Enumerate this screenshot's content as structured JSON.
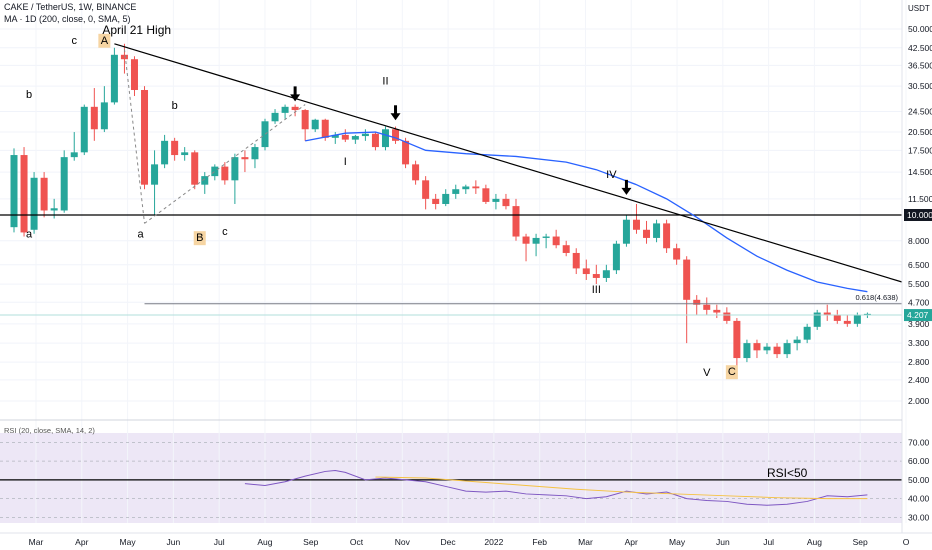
{
  "header": {
    "symbol_line": "CAKE / TetherUS, 1W, BINANCE",
    "ma_line": "MA · 1D (200, close, 0, SMA, 5)",
    "rsi_line": "RSI (20, close, SMA, 14, 2)",
    "currency": "USDT"
  },
  "chart_data": {
    "type": "candlestick",
    "price_axis": {
      "scale": "log",
      "ticks": [
        "50.000",
        "42.500",
        "36.500",
        "30.500",
        "24.500",
        "20.500",
        "17.500",
        "14.500",
        "11.500",
        "10.000",
        "8.000",
        "6.500",
        "5.500",
        "4.700",
        "4.207",
        "3.900",
        "3.300",
        "2.800",
        "2.400",
        "2.000"
      ],
      "current_price": "4.207",
      "highlight_level": "10.000"
    },
    "time_axis": {
      "labels": [
        "Mar",
        "Apr",
        "May",
        "Jun",
        "Jul",
        "Aug",
        "Sep",
        "Oct",
        "Nov",
        "Dec",
        "2022",
        "Feb",
        "Mar",
        "Apr",
        "May",
        "Jun",
        "Jul",
        "Aug",
        "Sep",
        "O"
      ]
    },
    "candles": [
      {
        "o": 9.0,
        "h": 17.8,
        "l": 8.6,
        "c": 16.8
      },
      {
        "o": 16.8,
        "h": 18.0,
        "l": 8.3,
        "c": 8.6
      },
      {
        "o": 8.8,
        "h": 14.5,
        "l": 8.5,
        "c": 13.8
      },
      {
        "o": 13.8,
        "h": 14.5,
        "l": 9.8,
        "c": 10.4
      },
      {
        "o": 10.4,
        "h": 11.5,
        "l": 9.7,
        "c": 10.6
      },
      {
        "o": 10.4,
        "h": 17.5,
        "l": 10.2,
        "c": 16.5
      },
      {
        "o": 16.5,
        "h": 20.5,
        "l": 16.0,
        "c": 17.2
      },
      {
        "o": 17.2,
        "h": 26.0,
        "l": 16.8,
        "c": 25.5
      },
      {
        "o": 25.5,
        "h": 30.0,
        "l": 19.0,
        "c": 21.0
      },
      {
        "o": 21.0,
        "h": 30.5,
        "l": 20.5,
        "c": 26.5
      },
      {
        "o": 26.5,
        "h": 42.5,
        "l": 26.0,
        "c": 40.0
      },
      {
        "o": 40.0,
        "h": 44.0,
        "l": 34.0,
        "c": 38.5
      },
      {
        "o": 38.5,
        "h": 39.5,
        "l": 28.0,
        "c": 29.5
      },
      {
        "o": 29.5,
        "h": 30.5,
        "l": 12.5,
        "c": 13.0
      },
      {
        "o": 13.0,
        "h": 17.5,
        "l": 10.0,
        "c": 15.5
      },
      {
        "o": 15.5,
        "h": 20.0,
        "l": 15.0,
        "c": 19.0
      },
      {
        "o": 19.0,
        "h": 19.5,
        "l": 16.0,
        "c": 16.8
      },
      {
        "o": 16.8,
        "h": 18.0,
        "l": 16.0,
        "c": 17.2
      },
      {
        "o": 17.2,
        "h": 17.5,
        "l": 12.5,
        "c": 13.0
      },
      {
        "o": 13.0,
        "h": 14.5,
        "l": 12.0,
        "c": 14.0
      },
      {
        "o": 14.0,
        "h": 15.5,
        "l": 13.5,
        "c": 15.2
      },
      {
        "o": 15.2,
        "h": 15.8,
        "l": 13.0,
        "c": 13.5
      },
      {
        "o": 13.5,
        "h": 17.0,
        "l": 11.0,
        "c": 16.5
      },
      {
        "o": 16.5,
        "h": 17.5,
        "l": 14.5,
        "c": 16.2
      },
      {
        "o": 16.2,
        "h": 18.5,
        "l": 15.0,
        "c": 18.0
      },
      {
        "o": 18.0,
        "h": 23.0,
        "l": 17.5,
        "c": 22.5
      },
      {
        "o": 22.5,
        "h": 25.0,
        "l": 22.0,
        "c": 24.2
      },
      {
        "o": 24.2,
        "h": 26.0,
        "l": 23.0,
        "c": 25.5
      },
      {
        "o": 25.5,
        "h": 26.0,
        "l": 23.5,
        "c": 24.8
      },
      {
        "o": 24.8,
        "h": 25.0,
        "l": 19.0,
        "c": 21.0
      },
      {
        "o": 21.0,
        "h": 23.0,
        "l": 20.5,
        "c": 22.8
      },
      {
        "o": 22.8,
        "h": 23.0,
        "l": 19.0,
        "c": 19.5
      },
      {
        "o": 19.5,
        "h": 20.5,
        "l": 18.5,
        "c": 20.0
      },
      {
        "o": 20.0,
        "h": 21.0,
        "l": 18.8,
        "c": 19.2
      },
      {
        "o": 19.2,
        "h": 20.0,
        "l": 18.5,
        "c": 19.8
      },
      {
        "o": 19.8,
        "h": 21.0,
        "l": 19.0,
        "c": 20.2
      },
      {
        "o": 20.2,
        "h": 20.5,
        "l": 17.5,
        "c": 18.0
      },
      {
        "o": 18.0,
        "h": 21.5,
        "l": 17.5,
        "c": 21.0
      },
      {
        "o": 21.0,
        "h": 21.5,
        "l": 18.5,
        "c": 19.0
      },
      {
        "o": 19.0,
        "h": 19.5,
        "l": 15.0,
        "c": 15.5
      },
      {
        "o": 15.5,
        "h": 16.0,
        "l": 13.0,
        "c": 13.5
      },
      {
        "o": 13.5,
        "h": 14.0,
        "l": 10.5,
        "c": 11.5
      },
      {
        "o": 11.5,
        "h": 12.0,
        "l": 10.5,
        "c": 11.0
      },
      {
        "o": 11.0,
        "h": 12.5,
        "l": 10.8,
        "c": 12.0
      },
      {
        "o": 12.0,
        "h": 13.0,
        "l": 11.5,
        "c": 12.5
      },
      {
        "o": 12.5,
        "h": 13.0,
        "l": 12.0,
        "c": 12.8
      },
      {
        "o": 12.8,
        "h": 13.5,
        "l": 12.0,
        "c": 12.6
      },
      {
        "o": 12.6,
        "h": 13.0,
        "l": 11.0,
        "c": 11.2
      },
      {
        "o": 11.2,
        "h": 12.0,
        "l": 10.5,
        "c": 11.5
      },
      {
        "o": 11.5,
        "h": 12.0,
        "l": 10.5,
        "c": 10.8
      },
      {
        "o": 10.8,
        "h": 11.5,
        "l": 8.0,
        "c": 8.3
      },
      {
        "o": 8.3,
        "h": 8.5,
        "l": 6.7,
        "c": 7.8
      },
      {
        "o": 7.8,
        "h": 8.5,
        "l": 7.0,
        "c": 8.2
      },
      {
        "o": 8.2,
        "h": 8.5,
        "l": 7.5,
        "c": 8.3
      },
      {
        "o": 8.3,
        "h": 8.8,
        "l": 7.5,
        "c": 7.7
      },
      {
        "o": 7.7,
        "h": 8.0,
        "l": 7.0,
        "c": 7.2
      },
      {
        "o": 7.2,
        "h": 7.5,
        "l": 6.0,
        "c": 6.3
      },
      {
        "o": 6.3,
        "h": 6.8,
        "l": 5.7,
        "c": 6.0
      },
      {
        "o": 6.0,
        "h": 6.5,
        "l": 5.5,
        "c": 5.8
      },
      {
        "o": 5.8,
        "h": 6.5,
        "l": 5.6,
        "c": 6.2
      },
      {
        "o": 6.2,
        "h": 8.0,
        "l": 6.0,
        "c": 7.8
      },
      {
        "o": 7.8,
        "h": 10.0,
        "l": 7.6,
        "c": 9.6
      },
      {
        "o": 9.6,
        "h": 11.0,
        "l": 8.5,
        "c": 8.8
      },
      {
        "o": 8.8,
        "h": 9.5,
        "l": 7.8,
        "c": 8.2
      },
      {
        "o": 8.2,
        "h": 9.6,
        "l": 7.9,
        "c": 9.3
      },
      {
        "o": 9.3,
        "h": 9.6,
        "l": 7.2,
        "c": 7.5
      },
      {
        "o": 7.5,
        "h": 7.8,
        "l": 6.5,
        "c": 6.8
      },
      {
        "o": 6.8,
        "h": 7.0,
        "l": 3.3,
        "c": 4.8
      },
      {
        "o": 4.8,
        "h": 5.0,
        "l": 4.2,
        "c": 4.6
      },
      {
        "o": 4.6,
        "h": 4.9,
        "l": 4.2,
        "c": 4.4
      },
      {
        "o": 4.4,
        "h": 4.6,
        "l": 4.1,
        "c": 4.3
      },
      {
        "o": 4.3,
        "h": 4.5,
        "l": 3.9,
        "c": 4.0
      },
      {
        "o": 4.0,
        "h": 4.1,
        "l": 2.6,
        "c": 2.9
      },
      {
        "o": 2.9,
        "h": 3.4,
        "l": 2.8,
        "c": 3.3
      },
      {
        "o": 3.3,
        "h": 3.4,
        "l": 2.9,
        "c": 3.1
      },
      {
        "o": 3.1,
        "h": 3.3,
        "l": 3.0,
        "c": 3.2
      },
      {
        "o": 3.2,
        "h": 3.3,
        "l": 2.9,
        "c": 3.0
      },
      {
        "o": 3.0,
        "h": 3.4,
        "l": 2.9,
        "c": 3.3
      },
      {
        "o": 3.3,
        "h": 3.5,
        "l": 3.1,
        "c": 3.4
      },
      {
        "o": 3.4,
        "h": 3.9,
        "l": 3.3,
        "c": 3.8
      },
      {
        "o": 3.8,
        "h": 4.4,
        "l": 3.7,
        "c": 4.3
      },
      {
        "o": 4.3,
        "h": 4.6,
        "l": 4.0,
        "c": 4.2
      },
      {
        "o": 4.2,
        "h": 4.4,
        "l": 3.9,
        "c": 4.0
      },
      {
        "o": 4.0,
        "h": 4.2,
        "l": 3.8,
        "c": 3.9
      },
      {
        "o": 3.9,
        "h": 4.3,
        "l": 3.8,
        "c": 4.2
      },
      {
        "o": 4.2,
        "h": 4.3,
        "l": 4.1,
        "c": 4.25
      }
    ],
    "moving_average_200": [
      {
        "i": 29,
        "v": 19.0
      },
      {
        "i": 33,
        "v": 20.3
      },
      {
        "i": 36,
        "v": 20.5
      },
      {
        "i": 38,
        "v": 19.5
      },
      {
        "i": 41,
        "v": 17.5
      },
      {
        "i": 45,
        "v": 17.0
      },
      {
        "i": 50,
        "v": 16.6
      },
      {
        "i": 55,
        "v": 15.8
      },
      {
        "i": 58,
        "v": 14.8
      },
      {
        "i": 62,
        "v": 13.0
      },
      {
        "i": 65,
        "v": 11.5
      },
      {
        "i": 68,
        "v": 9.8
      },
      {
        "i": 71,
        "v": 8.2
      },
      {
        "i": 74,
        "v": 7.0
      },
      {
        "i": 77,
        "v": 6.2
      },
      {
        "i": 80,
        "v": 5.6
      },
      {
        "i": 83,
        "v": 5.3
      },
      {
        "i": 85,
        "v": 5.15
      }
    ],
    "rsi": {
      "ticks": [
        "70.00",
        "60.00",
        "50.00",
        "40.00",
        "30.00"
      ],
      "threshold": 50,
      "rsi_values": [
        {
          "i": 23,
          "v": 48
        },
        {
          "i": 25,
          "v": 47
        },
        {
          "i": 27,
          "v": 49
        },
        {
          "i": 29,
          "v": 52
        },
        {
          "i": 31,
          "v": 54.5
        },
        {
          "i": 32,
          "v": 55
        },
        {
          "i": 33,
          "v": 54
        },
        {
          "i": 35,
          "v": 50
        },
        {
          "i": 37,
          "v": 51
        },
        {
          "i": 39,
          "v": 50
        },
        {
          "i": 41,
          "v": 49
        },
        {
          "i": 43,
          "v": 46.5
        },
        {
          "i": 45,
          "v": 44
        },
        {
          "i": 47,
          "v": 43.5
        },
        {
          "i": 49,
          "v": 44
        },
        {
          "i": 51,
          "v": 42.5
        },
        {
          "i": 53,
          "v": 42
        },
        {
          "i": 55,
          "v": 41.5
        },
        {
          "i": 57,
          "v": 40
        },
        {
          "i": 59,
          "v": 41
        },
        {
          "i": 61,
          "v": 44
        },
        {
          "i": 63,
          "v": 42.5
        },
        {
          "i": 65,
          "v": 43.5
        },
        {
          "i": 67,
          "v": 40
        },
        {
          "i": 69,
          "v": 39
        },
        {
          "i": 71,
          "v": 38.5
        },
        {
          "i": 73,
          "v": 37
        },
        {
          "i": 75,
          "v": 36.5
        },
        {
          "i": 77,
          "v": 37
        },
        {
          "i": 79,
          "v": 38.5
        },
        {
          "i": 81,
          "v": 41.5
        },
        {
          "i": 83,
          "v": 41
        },
        {
          "i": 85,
          "v": 42
        }
      ],
      "rsi_ma": [
        {
          "i": 36,
          "v": 51.5
        },
        {
          "i": 41,
          "v": 51
        },
        {
          "i": 46,
          "v": 49
        },
        {
          "i": 51,
          "v": 47
        },
        {
          "i": 56,
          "v": 45
        },
        {
          "i": 61,
          "v": 43.5
        },
        {
          "i": 66,
          "v": 42.5
        },
        {
          "i": 71,
          "v": 41.5
        },
        {
          "i": 76,
          "v": 40.5
        },
        {
          "i": 81,
          "v": 40
        },
        {
          "i": 85,
          "v": 40
        }
      ]
    },
    "annotations": {
      "april_high": "April 21 High",
      "fib_level": "0.618(4.638)",
      "rsi_note": "RSI<50",
      "wave_labels": [
        "c",
        "A",
        "a",
        "b",
        "b",
        "a",
        "B",
        "c",
        "I",
        "II",
        "III",
        "IV",
        "V",
        "C"
      ]
    },
    "colors": {
      "up": "#26a69a",
      "down": "#ef5350",
      "ma": "#2962ff",
      "rsi": "#7e57c2",
      "rsi_ma": "#f5c242",
      "label_bg": "#f6d5a3"
    }
  }
}
